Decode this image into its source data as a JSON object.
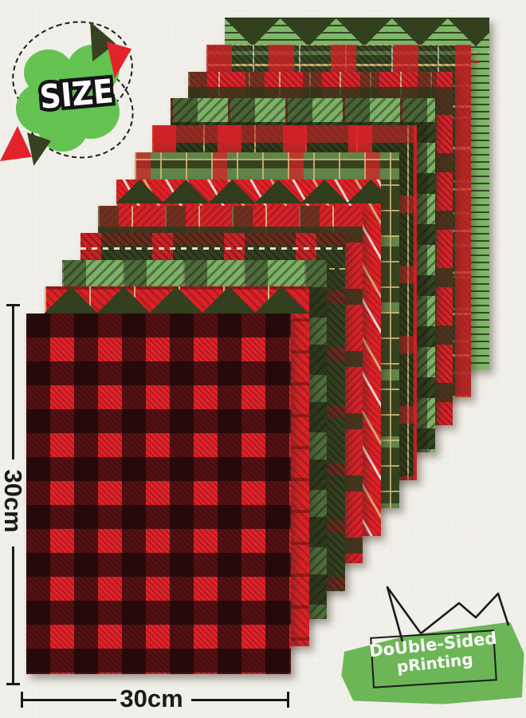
{
  "product_banner": {
    "size_label": "SIZE",
    "height_dimension": "30cm",
    "width_dimension": "30cm",
    "badge": {
      "line1": "DoUble-Sided",
      "line2": "pRinting"
    }
  },
  "stack": {
    "sheet_count": 12,
    "sheets": [
      {
        "name": "buffalo-check-red-black"
      },
      {
        "name": "red-tartan-triangle-zigzag"
      },
      {
        "name": "green-check-diagonal-stripe"
      },
      {
        "name": "dark-green-tartan-dashed-lines"
      },
      {
        "name": "red-green-tartan-gold-pinstripe"
      },
      {
        "name": "red-plaid-trees-candy-stripe"
      },
      {
        "name": "dark-green-gold-grid"
      },
      {
        "name": "dark-red-tartan-gold"
      },
      {
        "name": "green-plaid-black-diagonal"
      },
      {
        "name": "red-tartan-gold-dash"
      },
      {
        "name": "dark-green-red-hatch-gold-rope"
      },
      {
        "name": "light-green-stripe-triangles"
      }
    ]
  },
  "colors": {
    "red": "#e3232a",
    "dark_green": "#333f20",
    "light_green": "#7db166",
    "gold": "#d7bd7c",
    "badge_green": "#6cb657",
    "blob_green": "#64c251",
    "background": "#f1efe9",
    "ink": "#1a1a1a"
  }
}
